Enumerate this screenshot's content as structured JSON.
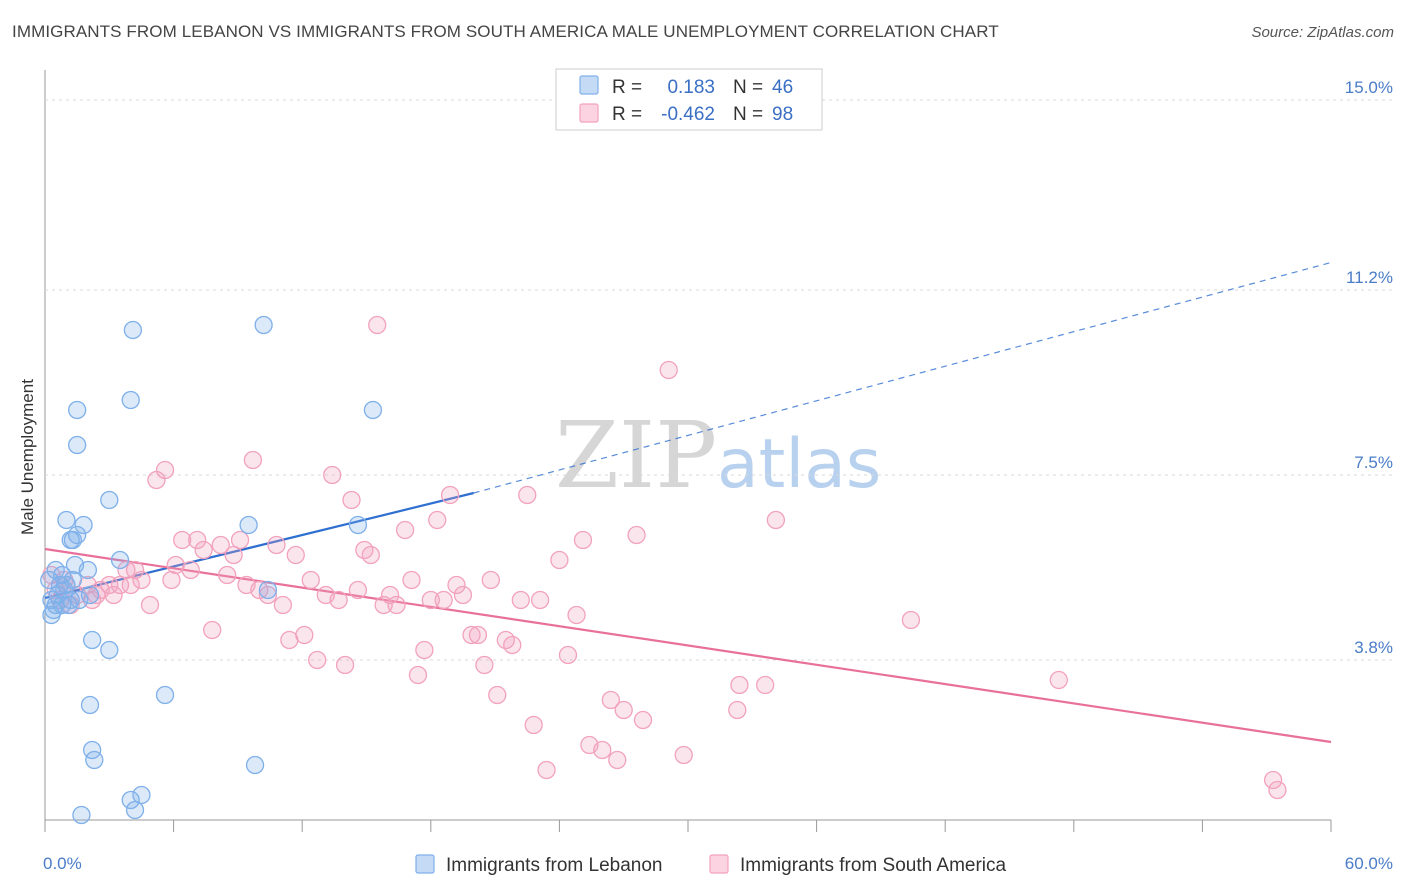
{
  "title": "IMMIGRANTS FROM LEBANON VS IMMIGRANTS FROM SOUTH AMERICA MALE UNEMPLOYMENT CORRELATION CHART",
  "source": "Source: ZipAtlas.com",
  "watermark": {
    "zip": "ZIP",
    "atlas": "atlas"
  },
  "legend": {
    "rows": [
      {
        "r_label": "R =",
        "r_value": "0.183",
        "n_label": "N =",
        "n_value": "46",
        "color": "#7fb0ea"
      },
      {
        "r_label": "R =",
        "r_value": "-0.462",
        "n_label": "N =",
        "n_value": "98",
        "color": "#f2a2bd"
      }
    ]
  },
  "bottom_legend": [
    {
      "label": "Immigrants from Lebanon",
      "color": "#7fb0ea"
    },
    {
      "label": "Immigrants from South America",
      "color": "#f2a2bd"
    }
  ],
  "chart_data": {
    "type": "scatter",
    "title": "IMMIGRANTS FROM LEBANON VS IMMIGRANTS FROM SOUTH AMERICA MALE UNEMPLOYMENT CORRELATION CHART",
    "xlabel": "",
    "ylabel": "Male Unemployment",
    "xlim": [
      0,
      60
    ],
    "ylim": [
      0.6,
      15.6
    ],
    "x_tick_labels": [
      "0.0%",
      "60.0%"
    ],
    "y_ticks": [
      3.8,
      7.5,
      11.2,
      15.0
    ],
    "y_tick_labels": [
      "3.8%",
      "7.5%",
      "11.2%",
      "15.0%"
    ],
    "grid": true,
    "legend_position": "top-center",
    "series": [
      {
        "name": "Immigrants from Lebanon",
        "color": "#7fb0ea",
        "trend_color": "#2f6fd0",
        "trend_solid": [
          [
            0,
            5.04
          ],
          [
            20,
            7.14
          ]
        ],
        "trend_dashed": [
          [
            20,
            7.14
          ],
          [
            60,
            11.75
          ]
        ],
        "points": [
          [
            0.2,
            5.4
          ],
          [
            0.3,
            5.0
          ],
          [
            0.4,
            4.8
          ],
          [
            0.5,
            4.9
          ],
          [
            0.6,
            5.1
          ],
          [
            0.7,
            5.3
          ],
          [
            0.3,
            4.7
          ],
          [
            0.8,
            5.5
          ],
          [
            1.0,
            5.3
          ],
          [
            1.1,
            4.9
          ],
          [
            1.2,
            5.0
          ],
          [
            0.9,
            5.2
          ],
          [
            1.3,
            5.4
          ],
          [
            1.0,
            6.6
          ],
          [
            1.2,
            6.2
          ],
          [
            1.3,
            6.2
          ],
          [
            1.5,
            6.3
          ],
          [
            1.8,
            6.5
          ],
          [
            2.1,
            5.1
          ],
          [
            2.0,
            5.6
          ],
          [
            1.4,
            5.7
          ],
          [
            1.5,
            8.1
          ],
          [
            1.5,
            8.8
          ],
          [
            1.6,
            5.0
          ],
          [
            2.2,
            4.2
          ],
          [
            2.1,
            2.9
          ],
          [
            2.2,
            2.0
          ],
          [
            2.3,
            1.8
          ],
          [
            1.7,
            0.7
          ],
          [
            3.0,
            4.0
          ],
          [
            3.0,
            7.0
          ],
          [
            3.5,
            5.8
          ],
          [
            4.0,
            1.0
          ],
          [
            4.2,
            0.8
          ],
          [
            4.5,
            1.1
          ],
          [
            4.1,
            10.4
          ],
          [
            4.0,
            9.0
          ],
          [
            5.6,
            3.1
          ],
          [
            9.5,
            6.5
          ],
          [
            9.8,
            1.7
          ],
          [
            10.4,
            5.2
          ],
          [
            10.2,
            10.5
          ],
          [
            14.6,
            6.5
          ],
          [
            15.3,
            8.8
          ],
          [
            0.5,
            5.6
          ],
          [
            0.8,
            4.9
          ]
        ]
      },
      {
        "name": "Immigrants from South America",
        "color": "#f2a2bd",
        "trend_color": "#e8709a",
        "trend_solid": [
          [
            0,
            6.02
          ],
          [
            60,
            2.16
          ]
        ],
        "points": [
          [
            0.3,
            5.5
          ],
          [
            0.5,
            5.2
          ],
          [
            0.7,
            5.0
          ],
          [
            1.0,
            5.3
          ],
          [
            1.2,
            4.9
          ],
          [
            1.5,
            5.1
          ],
          [
            2.0,
            5.3
          ],
          [
            2.2,
            5.0
          ],
          [
            2.4,
            5.1
          ],
          [
            2.6,
            5.2
          ],
          [
            3.0,
            5.3
          ],
          [
            3.2,
            5.1
          ],
          [
            3.5,
            5.3
          ],
          [
            3.8,
            5.6
          ],
          [
            4.0,
            5.3
          ],
          [
            4.2,
            5.6
          ],
          [
            4.5,
            5.4
          ],
          [
            4.9,
            4.9
          ],
          [
            5.2,
            7.4
          ],
          [
            5.6,
            7.6
          ],
          [
            5.9,
            5.4
          ],
          [
            6.1,
            5.7
          ],
          [
            6.4,
            6.2
          ],
          [
            6.8,
            5.6
          ],
          [
            7.1,
            6.2
          ],
          [
            7.4,
            6.0
          ],
          [
            7.8,
            4.4
          ],
          [
            8.2,
            6.1
          ],
          [
            8.5,
            5.5
          ],
          [
            8.8,
            5.9
          ],
          [
            9.1,
            6.2
          ],
          [
            9.4,
            5.3
          ],
          [
            9.7,
            7.8
          ],
          [
            10.0,
            5.2
          ],
          [
            10.4,
            5.1
          ],
          [
            10.8,
            6.1
          ],
          [
            11.1,
            4.9
          ],
          [
            11.4,
            4.2
          ],
          [
            11.7,
            5.9
          ],
          [
            12.1,
            4.3
          ],
          [
            12.4,
            5.4
          ],
          [
            12.7,
            3.8
          ],
          [
            13.1,
            5.1
          ],
          [
            13.4,
            7.5
          ],
          [
            13.7,
            5.0
          ],
          [
            14.0,
            3.7
          ],
          [
            14.3,
            7.0
          ],
          [
            14.6,
            5.2
          ],
          [
            14.9,
            6.0
          ],
          [
            15.2,
            5.9
          ],
          [
            15.5,
            10.5
          ],
          [
            15.8,
            4.9
          ],
          [
            16.1,
            5.1
          ],
          [
            16.4,
            4.9
          ],
          [
            16.8,
            6.4
          ],
          [
            17.1,
            5.4
          ],
          [
            17.4,
            3.5
          ],
          [
            17.7,
            4.0
          ],
          [
            18.0,
            5.0
          ],
          [
            18.3,
            6.6
          ],
          [
            18.6,
            5.0
          ],
          [
            18.9,
            7.1
          ],
          [
            19.2,
            5.3
          ],
          [
            19.5,
            5.1
          ],
          [
            19.9,
            4.3
          ],
          [
            20.2,
            4.3
          ],
          [
            20.5,
            3.7
          ],
          [
            20.8,
            5.4
          ],
          [
            21.1,
            3.1
          ],
          [
            21.5,
            4.2
          ],
          [
            21.8,
            4.1
          ],
          [
            22.2,
            5.0
          ],
          [
            22.5,
            7.1
          ],
          [
            22.8,
            2.5
          ],
          [
            23.1,
            5.0
          ],
          [
            23.4,
            1.6
          ],
          [
            24.0,
            5.8
          ],
          [
            24.4,
            3.9
          ],
          [
            24.8,
            4.7
          ],
          [
            25.1,
            6.2
          ],
          [
            25.4,
            2.1
          ],
          [
            26.0,
            2.0
          ],
          [
            26.4,
            3.0
          ],
          [
            26.7,
            1.8
          ],
          [
            27.0,
            2.8
          ],
          [
            27.6,
            6.3
          ],
          [
            27.9,
            2.6
          ],
          [
            29.1,
            9.6
          ],
          [
            29.8,
            1.9
          ],
          [
            32.4,
            3.3
          ],
          [
            32.3,
            2.8
          ],
          [
            33.6,
            3.3
          ],
          [
            34.1,
            6.6
          ],
          [
            40.4,
            4.6
          ],
          [
            47.3,
            3.4
          ],
          [
            57.3,
            1.4
          ],
          [
            57.5,
            1.2
          ],
          [
            0.9,
            5.4
          ]
        ]
      }
    ]
  }
}
